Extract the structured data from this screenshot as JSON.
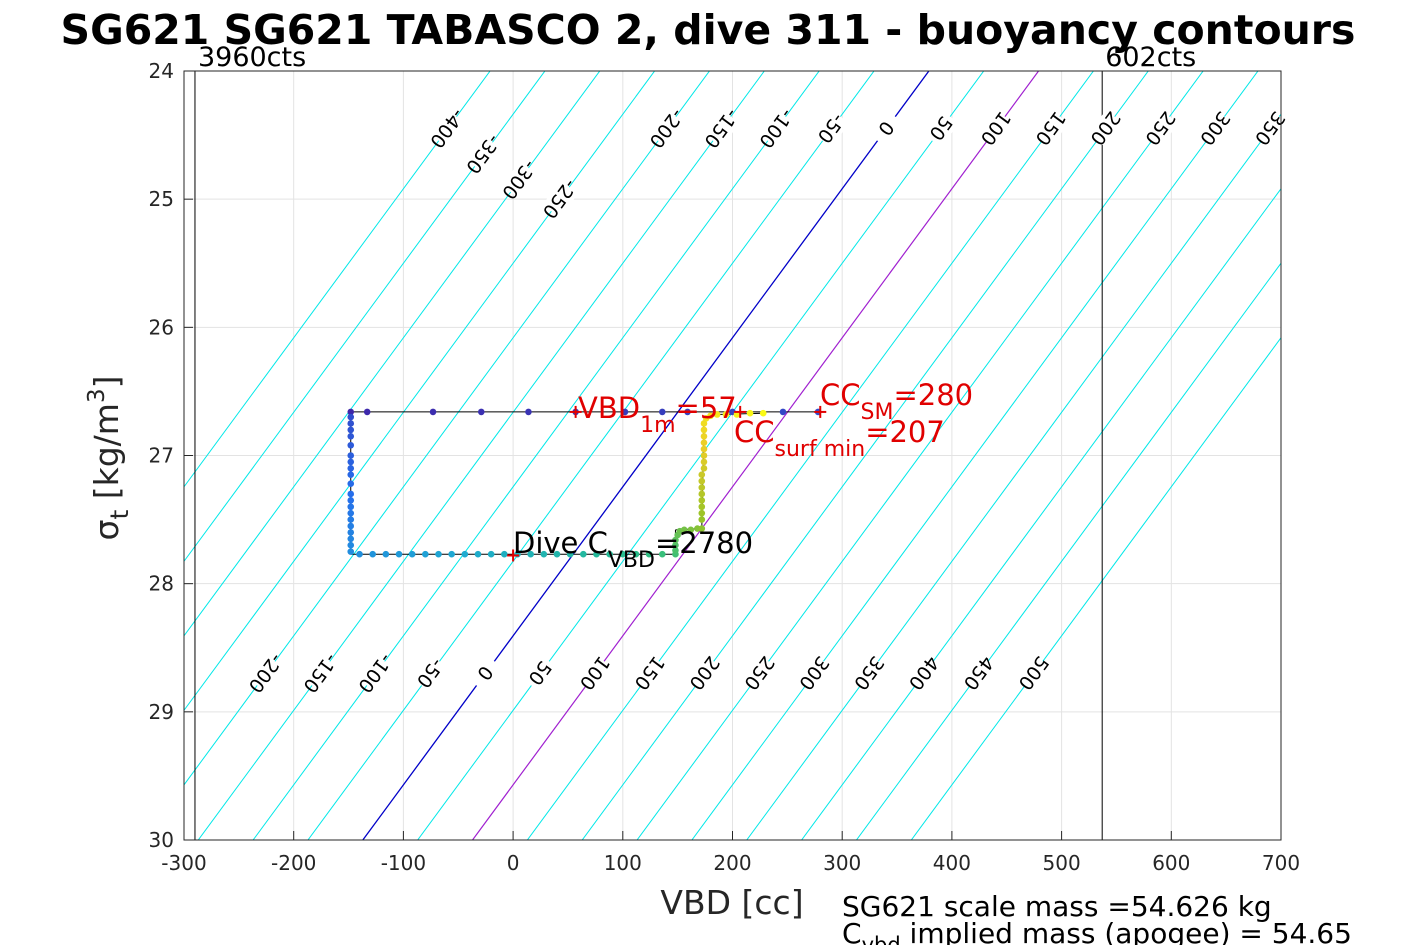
{
  "chart_data": {
    "type": "scatter",
    "title": "SG621 SG621 TABASCO 2, dive 311 - buoyancy contours",
    "xlabel": "VBD [cc]",
    "ylabel": "σ",
    "ylabel_sub": "t",
    "ylabel_unit_pre": " [kg/m",
    "ylabel_unit_sup": "3",
    "ylabel_unit_post": "]",
    "xlim": [
      -300,
      700
    ],
    "ylim": [
      24,
      30
    ],
    "y_reversed": true,
    "grid": true,
    "xticks": [
      "-300",
      "-200",
      "-100",
      "0",
      "100",
      "200",
      "300",
      "400",
      "500",
      "600",
      "700"
    ],
    "yticks": [
      "24",
      "25",
      "26",
      "27",
      "28",
      "29",
      "30"
    ],
    "vlines": [
      {
        "x": -290,
        "label": "3960cts"
      },
      {
        "x": 537,
        "label": "602cts"
      }
    ],
    "contours": {
      "values": [
        -400,
        -350,
        -300,
        -250,
        -200,
        -150,
        -100,
        -50,
        0,
        50,
        100,
        150,
        200,
        250,
        300,
        350,
        400,
        450,
        500
      ],
      "slope_cc_per_sigma": -86,
      "x_at_sigma_30": [
        -537,
        -487,
        -437,
        -387,
        -337,
        -287,
        -237,
        -187,
        -137,
        -87,
        -37,
        13,
        63,
        113,
        163,
        213,
        263,
        313,
        363
      ],
      "top_labels": [
        "-400",
        "-350",
        "-300",
        "-250",
        "-200",
        "-150",
        "-100",
        "-50",
        "0",
        "50",
        "100",
        "150",
        "200",
        "250",
        "300",
        "350",
        "400",
        "450",
        "500"
      ],
      "bottom_labels": [
        "-200",
        "-150",
        "-100",
        "-50",
        "0",
        "50",
        "100",
        "150",
        "200",
        "250",
        "300",
        "350",
        "400",
        "450",
        "500"
      ],
      "zero_color": "#0000c8",
      "highlight_values": [
        100,
        207
      ],
      "highlight_color": "#a020d0",
      "color": "#00e8e8"
    },
    "series": [
      {
        "points": [
          [
            -148,
            26.66
          ],
          [
            -133,
            26.66
          ],
          [
            -73,
            26.66
          ],
          [
            -29,
            26.66
          ],
          [
            14,
            26.66
          ],
          [
            57,
            26.66
          ],
          [
            102,
            26.66
          ],
          [
            136,
            26.66
          ],
          [
            159,
            26.66
          ],
          [
            200,
            26.66
          ],
          [
            246,
            26.66
          ],
          [
            278,
            26.66
          ],
          [
            -148,
            26.7
          ],
          [
            -148,
            26.75
          ],
          [
            -148,
            26.8
          ],
          [
            -148,
            26.85
          ],
          [
            -148,
            26.92
          ],
          [
            -148,
            27.0
          ],
          [
            -148,
            27.05
          ],
          [
            -148,
            27.1
          ],
          [
            -148,
            27.15
          ],
          [
            -148,
            27.22
          ],
          [
            -148,
            27.3
          ],
          [
            -148,
            27.35
          ],
          [
            -148,
            27.4
          ],
          [
            -148,
            27.45
          ],
          [
            -148,
            27.5
          ],
          [
            -148,
            27.55
          ],
          [
            -148,
            27.6
          ],
          [
            -148,
            27.65
          ],
          [
            -148,
            27.7
          ],
          [
            -148,
            27.75
          ],
          [
            -140,
            27.77
          ],
          [
            -128,
            27.77
          ],
          [
            -116,
            27.77
          ],
          [
            -104,
            27.77
          ],
          [
            -92,
            27.77
          ],
          [
            -80,
            27.77
          ],
          [
            -68,
            27.77
          ],
          [
            -56,
            27.77
          ],
          [
            -44,
            27.77
          ],
          [
            -32,
            27.77
          ],
          [
            -20,
            27.77
          ],
          [
            -8,
            27.77
          ],
          [
            4,
            27.77
          ],
          [
            16,
            27.77
          ],
          [
            28,
            27.77
          ],
          [
            40,
            27.77
          ],
          [
            52,
            27.77
          ],
          [
            64,
            27.77
          ],
          [
            76,
            27.77
          ],
          [
            88,
            27.77
          ],
          [
            100,
            27.77
          ],
          [
            112,
            27.77
          ],
          [
            124,
            27.77
          ],
          [
            136,
            27.77
          ],
          [
            148,
            27.77
          ],
          [
            148,
            27.74
          ],
          [
            148,
            27.7
          ],
          [
            148,
            27.66
          ],
          [
            150,
            27.62
          ],
          [
            152,
            27.59
          ],
          [
            156,
            27.58
          ],
          [
            162,
            27.58
          ],
          [
            168,
            27.57
          ],
          [
            172,
            27.57
          ],
          [
            172,
            27.5
          ],
          [
            172,
            27.45
          ],
          [
            172,
            27.4
          ],
          [
            172,
            27.35
          ],
          [
            172,
            27.3
          ],
          [
            172,
            27.25
          ],
          [
            172,
            27.2
          ],
          [
            172,
            27.15
          ],
          [
            174,
            27.1
          ],
          [
            174,
            27.05
          ],
          [
            174,
            27.0
          ],
          [
            174,
            26.95
          ],
          [
            174,
            26.9
          ],
          [
            174,
            26.85
          ],
          [
            174,
            26.8
          ],
          [
            174,
            26.75
          ],
          [
            176,
            26.71
          ],
          [
            180,
            26.69
          ],
          [
            186,
            26.68
          ],
          [
            194,
            26.68
          ],
          [
            204,
            26.68
          ],
          [
            216,
            26.67
          ],
          [
            228,
            26.67
          ]
        ],
        "line_segments": [
          [
            [
              -148,
              26.66
            ],
            [
              278,
              26.66
            ]
          ],
          [
            [
              -148,
              26.66
            ],
            [
              -148,
              27.77
            ]
          ],
          [
            [
              -148,
              27.77
            ],
            [
              148,
              27.77
            ]
          ],
          [
            [
              148,
              27.77
            ],
            [
              148,
              27.58
            ]
          ],
          [
            [
              148,
              27.58
            ],
            [
              172,
              27.57
            ]
          ],
          [
            [
              172,
              27.57
            ],
            [
              174,
              26.72
            ]
          ],
          [
            [
              174,
              26.72
            ],
            [
              186,
              26.68
            ]
          ],
          [
            [
              186,
              26.68
            ],
            [
              228,
              26.67
            ]
          ]
        ]
      }
    ],
    "markers": [
      {
        "name": "vbd-1m",
        "x": 57,
        "y": 26.66,
        "symbol": "+",
        "color": "#e00000"
      },
      {
        "name": "cc-surf-min",
        "x": 207,
        "y": 26.66,
        "symbol": "+",
        "color": "#e00000"
      },
      {
        "name": "cc-sm",
        "x": 280,
        "y": 26.66,
        "symbol": "+",
        "color": "#e00000"
      },
      {
        "name": "dive-c-vbd",
        "x": 0,
        "y": 27.78,
        "symbol": "+",
        "color": "#e00000"
      }
    ],
    "annotations": {
      "vbd_1m": {
        "main": "VBD",
        "sub": "1m",
        "post": "=57",
        "color": "#e00000"
      },
      "cc_sm": {
        "main": "CC",
        "sub": "SM",
        "post": "=280",
        "color": "#e00000"
      },
      "cc_surf_min": {
        "main": "CC",
        "sub": "surf min",
        "post": "=207",
        "color": "#e00000"
      },
      "dive_c_vbd": {
        "main": "Dive C",
        "sub": "VBD",
        "post": "=2780",
        "color": "#000000"
      }
    },
    "footer": {
      "line1": "SG621 scale mass =54.626 kg",
      "line2_main": "C",
      "line2_sub": "vbd",
      "line2_post": " implied mass (apogee) = 54.65"
    }
  }
}
